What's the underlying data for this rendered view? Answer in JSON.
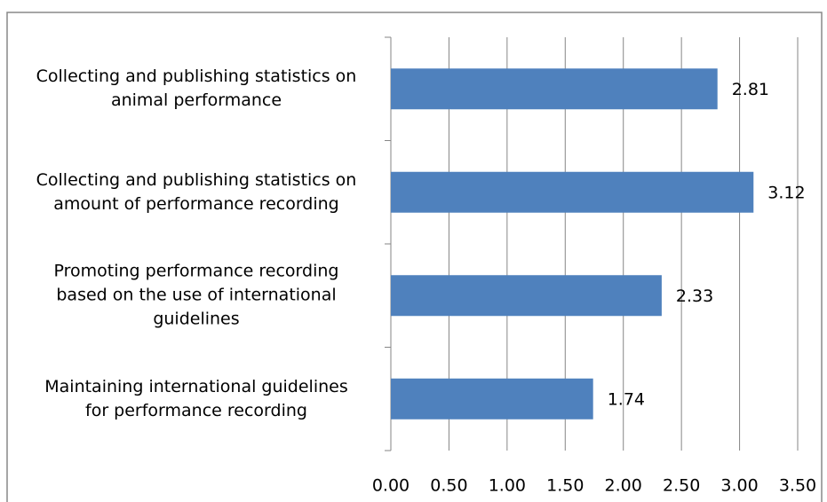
{
  "chart_data": {
    "type": "bar",
    "orientation": "horizontal",
    "categories": [
      "Collecting and publishing statistics on\nanimal performance",
      "Collecting and publishing statistics on\namount of performance recording",
      "Promoting performance recording\nbased on the use of international\nguidelines",
      "Maintaining international guidelines\nfor performance recording"
    ],
    "values": [
      2.81,
      3.12,
      2.33,
      1.74
    ],
    "color": "#4f81bd",
    "xlim": [
      0,
      3.5
    ],
    "xticks": [
      {
        "value": 0,
        "label": "0.00"
      },
      {
        "value": 0.5,
        "label": "0.50"
      },
      {
        "value": 1,
        "label": "1.00"
      },
      {
        "value": 1.5,
        "label": "1.50"
      },
      {
        "value": 2,
        "label": "2.00"
      },
      {
        "value": 2.5,
        "label": "2.50"
      },
      {
        "value": 3,
        "label": "3.00"
      },
      {
        "value": 3.5,
        "label": "3.50"
      }
    ],
    "grid": true
  }
}
